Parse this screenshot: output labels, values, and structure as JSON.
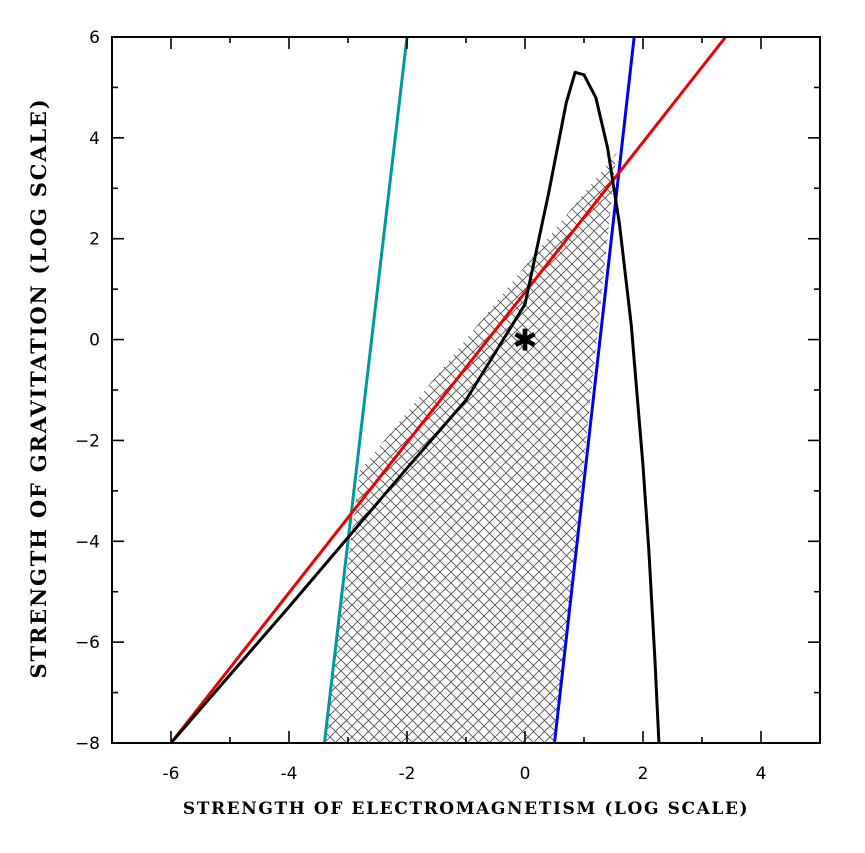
{
  "chart_data": {
    "type": "line",
    "xlabel": "STRENGTH OF ELECTROMAGNETISM (LOG SCALE)",
    "ylabel": "STRENGTH OF GRAVITATION (LOG SCALE)",
    "xlim": [
      -7,
      5
    ],
    "ylim": [
      -8,
      6
    ],
    "xticks": [
      "-6",
      "-4",
      "-2",
      "0",
      "2",
      "4"
    ],
    "yticks": [
      "6",
      "4",
      "2",
      "0",
      "−2",
      "−4",
      "−6",
      "−8"
    ],
    "xtick_values": [
      -6,
      -4,
      -2,
      0,
      2,
      4
    ],
    "ytick_values": [
      6,
      4,
      2,
      0,
      -2,
      -4,
      -6,
      -8
    ],
    "grid": false,
    "series": [
      {
        "color": "#009999",
        "x": [
          -3.4,
          -2.0
        ],
        "y": [
          -8,
          6
        ]
      },
      {
        "color": "#0000ee",
        "x": [
          0.5,
          1.85
        ],
        "y": [
          -8,
          6
        ]
      },
      {
        "color": "#ee0000",
        "x": [
          -6.0,
          3.4
        ],
        "y": [
          -8,
          6
        ]
      },
      {
        "color": "#000000",
        "x": [
          -6.0,
          -4.0,
          -2.0,
          -1.0,
          0.0,
          0.4,
          0.7,
          0.85,
          1.0,
          1.2,
          1.4,
          1.6,
          1.8,
          2.0,
          2.1,
          2.2,
          2.27
        ],
        "y": [
          -8.0,
          -5.3,
          -2.55,
          -1.2,
          0.7,
          2.9,
          4.7,
          5.3,
          5.25,
          4.8,
          3.8,
          2.3,
          0.3,
          -2.5,
          -4.2,
          -6.3,
          -8.0
        ]
      }
    ],
    "shaded_region": {
      "fill": "crosshatch",
      "x": [
        -3.4,
        0.5,
        1.55,
        -2.8
      ],
      "y": [
        -8,
        -8,
        3.7,
        -2.6
      ]
    },
    "annotations": [
      {
        "text": "✱",
        "x": 0,
        "y": 0
      }
    ]
  }
}
